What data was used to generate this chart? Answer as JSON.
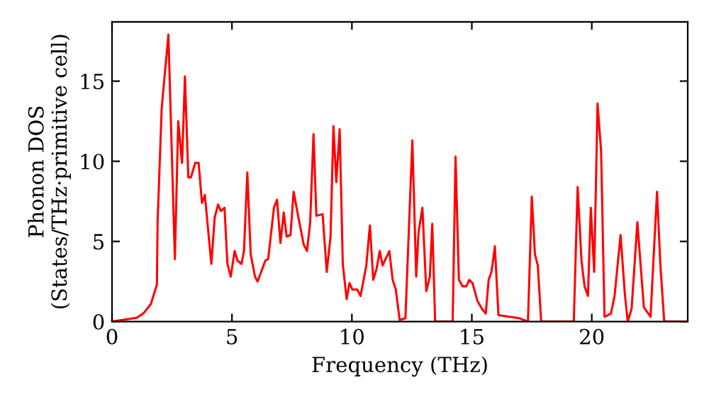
{
  "chart_data": {
    "type": "line",
    "xlabel": "Frequency (THz)",
    "ylabel": "Phonon DOS\n(States/THz·primitive cell)",
    "xlim": [
      0,
      24
    ],
    "ylim": [
      0,
      18.7
    ],
    "xticks": [
      0,
      5,
      10,
      15,
      20
    ],
    "yticks": [
      0,
      5,
      10,
      15
    ],
    "grid": false,
    "legend": false,
    "marker": "none",
    "line_style": "solid",
    "series": [
      {
        "color": "#ff0000",
        "x": [
          0,
          1.03,
          1.32,
          1.62,
          1.87,
          1.9,
          2.07,
          2.35,
          2.62,
          2.76,
          2.92,
          3.04,
          3.18,
          3.29,
          3.47,
          3.61,
          3.75,
          3.87,
          4.14,
          4.28,
          4.42,
          4.54,
          4.69,
          4.81,
          4.95,
          5.11,
          5.23,
          5.4,
          5.5,
          5.64,
          5.78,
          5.96,
          6.07,
          6.39,
          6.51,
          6.75,
          6.88,
          7.02,
          7.16,
          7.28,
          7.44,
          7.57,
          7.77,
          7.99,
          8.13,
          8.26,
          8.4,
          8.52,
          8.78,
          8.95,
          9.11,
          9.23,
          9.35,
          9.49,
          9.62,
          9.78,
          9.9,
          10.02,
          10.22,
          10.36,
          10.6,
          10.75,
          10.89,
          11.03,
          11.16,
          11.28,
          11.56,
          11.7,
          11.83,
          11.99,
          12.23,
          12.52,
          12.68,
          12.78,
          12.94,
          13.1,
          13.25,
          13.35,
          13.47,
          14.2,
          14.32,
          14.46,
          14.62,
          14.77,
          14.89,
          15.03,
          15.23,
          15.42,
          15.58,
          15.7,
          15.82,
          15.96,
          16.11,
          17.0,
          17.34,
          17.5,
          17.63,
          17.75,
          17.89,
          19.25,
          19.41,
          19.57,
          19.7,
          19.84,
          19.96,
          20.1,
          20.24,
          20.39,
          20.53,
          20.8,
          20.95,
          21.2,
          21.38,
          21.5,
          21.66,
          21.9,
          22.17,
          22.45,
          22.58,
          22.72,
          22.86,
          23.02,
          24
        ],
        "values": [
          0,
          0.24,
          0.53,
          1.1,
          2.3,
          6.2,
          13.3,
          17.9,
          3.9,
          12.5,
          9.9,
          15.3,
          9.0,
          9.0,
          9.9,
          9.9,
          7.4,
          7.9,
          3.6,
          6.5,
          7.3,
          6.9,
          7.1,
          3.6,
          2.8,
          4.4,
          3.8,
          3.6,
          4.4,
          9.3,
          4.2,
          2.8,
          2.5,
          3.8,
          3.9,
          7.1,
          7.6,
          4.9,
          6.8,
          5.3,
          5.4,
          8.1,
          6.5,
          4.8,
          4.4,
          6.2,
          11.7,
          6.6,
          6.7,
          3.1,
          5.3,
          12.2,
          8.7,
          12.0,
          3.6,
          1.4,
          2.4,
          2.0,
          2.0,
          1.6,
          3.5,
          6.0,
          2.6,
          3.3,
          4.4,
          3.5,
          4.4,
          2.6,
          2.0,
          0.1,
          0.2,
          11.3,
          2.8,
          5.6,
          7.1,
          1.9,
          2.8,
          6.1,
          0,
          0,
          10.3,
          2.6,
          2.2,
          2.2,
          2.6,
          2.4,
          1.3,
          0.8,
          0.5,
          2.6,
          3.1,
          4.7,
          0.4,
          0.2,
          0,
          7.8,
          4.2,
          3.5,
          0,
          0,
          8.4,
          3.8,
          2.2,
          1.6,
          7.1,
          3.1,
          13.6,
          10.6,
          0.3,
          0.5,
          1.6,
          5.4,
          1.7,
          0,
          0.8,
          6.2,
          0.9,
          0.3,
          4.1,
          8.1,
          3.5,
          0,
          0
        ]
      }
    ]
  }
}
